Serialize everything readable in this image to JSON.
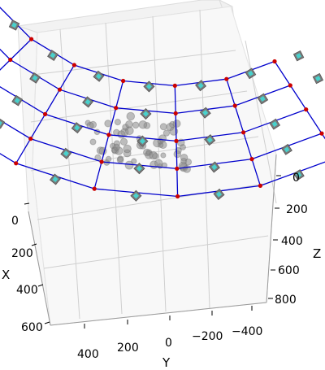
{
  "chart_data": {
    "type": "scatter",
    "projection": "3d",
    "title": "",
    "axes": {
      "x": {
        "label": "X",
        "ticks": [
          "0",
          "200",
          "400",
          "600"
        ]
      },
      "y": {
        "label": "Y",
        "ticks": [
          "400",
          "200",
          "0",
          "−200",
          "−400"
        ]
      },
      "z": {
        "label": "Z",
        "ticks": [
          "0",
          "200",
          "400",
          "600",
          "800"
        ]
      }
    },
    "grid": true,
    "legend": "none",
    "series": [
      {
        "role": "point-cloud",
        "marker": "circle",
        "color": "#8a8a8a",
        "alpha": 0.55
      },
      {
        "role": "camera-grid",
        "rows": 5,
        "cols": 7,
        "line_color": "#0000cc",
        "point_color": "#cc0000",
        "frustum_color": "#48d1cc"
      }
    ]
  }
}
